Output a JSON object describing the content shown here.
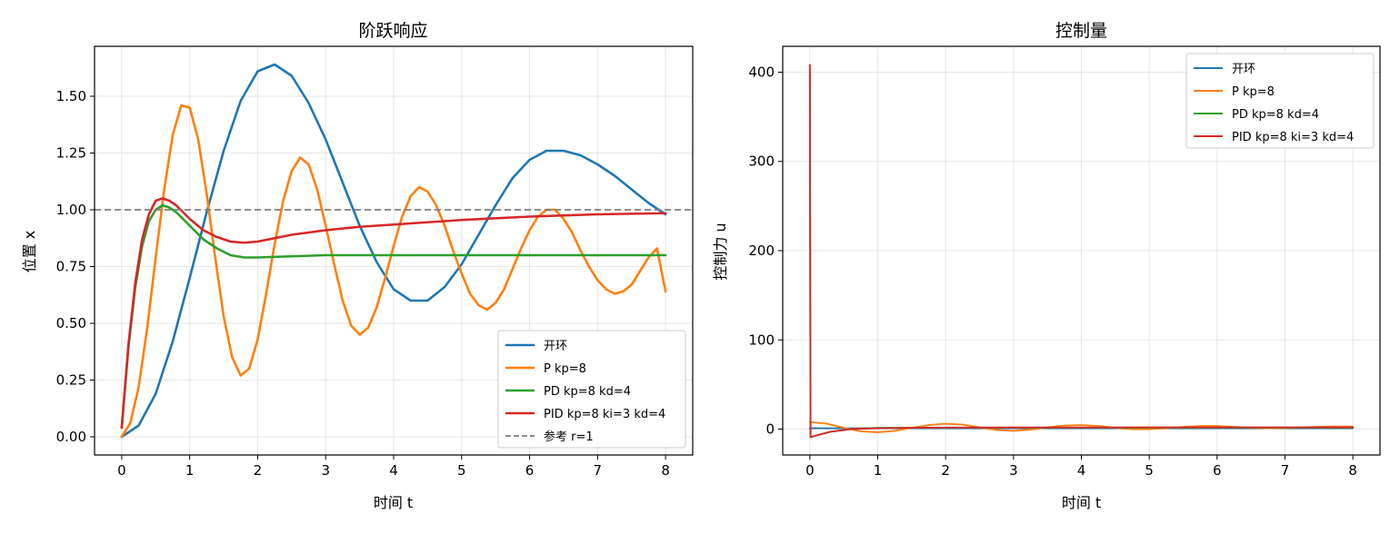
{
  "chart_data": [
    {
      "type": "line",
      "title": "阶跃响应",
      "xlabel": "时间 t",
      "ylabel": "位置 x",
      "xlim": [
        -0.4,
        8.4
      ],
      "ylim": [
        -0.08,
        1.72
      ],
      "xticks": [
        0,
        1,
        2,
        3,
        4,
        5,
        6,
        7,
        8
      ],
      "yticks": [
        0.0,
        0.25,
        0.5,
        0.75,
        1.0,
        1.25,
        1.5
      ],
      "ytick_labels": [
        "0.00",
        "0.25",
        "0.50",
        "0.75",
        "1.00",
        "1.25",
        "1.50"
      ],
      "grid": true,
      "legend_position": "lower-right",
      "series": [
        {
          "name": "开环",
          "color": "#1f77b4",
          "style": "solid",
          "x": [
            0,
            0.25,
            0.5,
            0.75,
            1.0,
            1.25,
            1.5,
            1.75,
            2.0,
            2.25,
            2.5,
            2.75,
            3.0,
            3.25,
            3.5,
            3.75,
            4.0,
            4.25,
            4.5,
            4.75,
            5.0,
            5.25,
            5.5,
            5.75,
            6.0,
            6.25,
            6.5,
            6.75,
            7.0,
            7.25,
            7.5,
            7.75,
            8.0
          ],
          "y": [
            0.0,
            0.05,
            0.19,
            0.42,
            0.7,
            0.99,
            1.26,
            1.48,
            1.61,
            1.64,
            1.59,
            1.47,
            1.31,
            1.12,
            0.93,
            0.77,
            0.65,
            0.6,
            0.6,
            0.66,
            0.76,
            0.89,
            1.02,
            1.14,
            1.22,
            1.26,
            1.26,
            1.24,
            1.2,
            1.15,
            1.09,
            1.03,
            0.98
          ]
        },
        {
          "name": "P  kp=8",
          "color": "#ff7f0e",
          "style": "solid",
          "x": [
            0,
            0.125,
            0.25,
            0.375,
            0.5,
            0.625,
            0.75,
            0.875,
            1.0,
            1.125,
            1.25,
            1.375,
            1.5,
            1.625,
            1.75,
            1.875,
            2.0,
            2.125,
            2.25,
            2.375,
            2.5,
            2.625,
            2.75,
            2.875,
            3.0,
            3.125,
            3.25,
            3.375,
            3.5,
            3.625,
            3.75,
            3.875,
            4.0,
            4.125,
            4.25,
            4.375,
            4.5,
            4.625,
            4.75,
            4.875,
            5.0,
            5.125,
            5.25,
            5.375,
            5.5,
            5.625,
            5.75,
            5.875,
            6.0,
            6.125,
            6.25,
            6.375,
            6.5,
            6.625,
            6.75,
            6.875,
            7.0,
            7.125,
            7.25,
            7.375,
            7.5,
            7.625,
            7.75,
            7.875,
            8.0
          ],
          "y": [
            0.0,
            0.06,
            0.22,
            0.48,
            0.79,
            1.09,
            1.33,
            1.46,
            1.45,
            1.31,
            1.07,
            0.79,
            0.53,
            0.35,
            0.27,
            0.3,
            0.43,
            0.63,
            0.85,
            1.04,
            1.17,
            1.23,
            1.2,
            1.09,
            0.93,
            0.76,
            0.6,
            0.49,
            0.45,
            0.48,
            0.57,
            0.7,
            0.84,
            0.97,
            1.06,
            1.1,
            1.08,
            1.02,
            0.93,
            0.82,
            0.72,
            0.63,
            0.58,
            0.56,
            0.59,
            0.65,
            0.74,
            0.83,
            0.91,
            0.97,
            1.0,
            1.0,
            0.96,
            0.9,
            0.82,
            0.75,
            0.69,
            0.65,
            0.63,
            0.64,
            0.67,
            0.73,
            0.79,
            0.83,
            0.64
          ]
        },
        {
          "name": "PD kp=8 kd=4",
          "color": "#2ca02c",
          "style": "solid",
          "x": [
            0,
            0.1,
            0.2,
            0.3,
            0.4,
            0.5,
            0.6,
            0.7,
            0.8,
            0.9,
            1.0,
            1.2,
            1.4,
            1.6,
            1.8,
            2.0,
            2.5,
            3.0,
            3.5,
            4.0,
            5.0,
            6.0,
            7.0,
            8.0
          ],
          "y": [
            0.04,
            0.4,
            0.66,
            0.84,
            0.95,
            1.0,
            1.02,
            1.01,
            0.99,
            0.96,
            0.93,
            0.87,
            0.83,
            0.8,
            0.79,
            0.79,
            0.795,
            0.8,
            0.8,
            0.8,
            0.8,
            0.8,
            0.8,
            0.8
          ]
        },
        {
          "name": "PID kp=8 ki=3 kd=4",
          "color": "#d62728",
          "style": "solid",
          "x": [
            0,
            0.1,
            0.2,
            0.3,
            0.4,
            0.5,
            0.6,
            0.7,
            0.8,
            0.9,
            1.0,
            1.2,
            1.4,
            1.6,
            1.8,
            2.0,
            2.5,
            3.0,
            3.5,
            4.0,
            5.0,
            6.0,
            7.0,
            8.0
          ],
          "y": [
            0.04,
            0.41,
            0.68,
            0.87,
            0.98,
            1.04,
            1.05,
            1.04,
            1.02,
            0.99,
            0.96,
            0.91,
            0.88,
            0.86,
            0.855,
            0.86,
            0.89,
            0.91,
            0.925,
            0.935,
            0.955,
            0.97,
            0.98,
            0.985
          ]
        },
        {
          "name": "参考 r=1",
          "color": "#7f7f7f",
          "style": "dashed",
          "x": [
            -0.4,
            8.4
          ],
          "y": [
            1.0,
            1.0
          ]
        }
      ]
    },
    {
      "type": "line",
      "title": "控制量",
      "xlabel": "时间 t",
      "ylabel": "控制力 u",
      "xlim": [
        -0.4,
        8.4
      ],
      "ylim": [
        -29,
        429
      ],
      "xticks": [
        0,
        1,
        2,
        3,
        4,
        5,
        6,
        7,
        8
      ],
      "yticks": [
        0,
        100,
        200,
        300,
        400
      ],
      "ytick_labels": [
        "0",
        "100",
        "200",
        "300",
        "400"
      ],
      "grid": true,
      "legend_position": "upper-right",
      "series": [
        {
          "name": "开环",
          "color": "#1f77b4",
          "style": "solid",
          "x": [
            0,
            8
          ],
          "y": [
            1,
            1
          ]
        },
        {
          "name": "P  kp=8",
          "color": "#ff7f0e",
          "style": "solid",
          "x": [
            0,
            0.25,
            0.5,
            0.75,
            1.0,
            1.25,
            1.5,
            1.75,
            2.0,
            2.25,
            2.5,
            2.75,
            3.0,
            3.25,
            3.5,
            3.75,
            4.0,
            4.25,
            4.5,
            4.75,
            5.0,
            5.25,
            5.5,
            5.75,
            6.0,
            6.25,
            6.5,
            6.75,
            7.0,
            7.25,
            7.5,
            7.75,
            8.0
          ],
          "y": [
            8,
            6,
            1.5,
            -2.5,
            -3.5,
            -2,
            1.5,
            4.5,
            6,
            5,
            2,
            -1,
            -2,
            -0.5,
            2,
            4,
            4.5,
            3.5,
            1.5,
            0,
            0,
            1,
            2.5,
            3.5,
            3.5,
            2.5,
            1.5,
            1,
            1.2,
            2,
            2.6,
            3,
            2.8
          ]
        },
        {
          "name": "PD kp=8 kd=4",
          "color": "#2ca02c",
          "style": "solid",
          "x": [
            0,
            0.01,
            0.1,
            0.3,
            0.6,
            1.0,
            1.5,
            2.0,
            3.0,
            4.0,
            5.0,
            6.0,
            7.0,
            8.0
          ],
          "y": [
            400,
            -9,
            -7,
            -3,
            0,
            1.5,
            1.6,
            1.6,
            1.6,
            1.6,
            1.6,
            1.6,
            1.6,
            1.6
          ]
        },
        {
          "name": "PID kp=8 ki=3 kd=4",
          "color": "#d62728",
          "style": "solid",
          "x": [
            0,
            0.01,
            0.1,
            0.3,
            0.6,
            1.0,
            1.5,
            2.0,
            3.0,
            4.0,
            5.0,
            6.0,
            7.0,
            8.0
          ],
          "y": [
            408,
            -9,
            -7,
            -3,
            0,
            1,
            1.5,
            1.7,
            1.8,
            1.9,
            1.95,
            2.0,
            2.0,
            2.0
          ]
        }
      ]
    }
  ]
}
